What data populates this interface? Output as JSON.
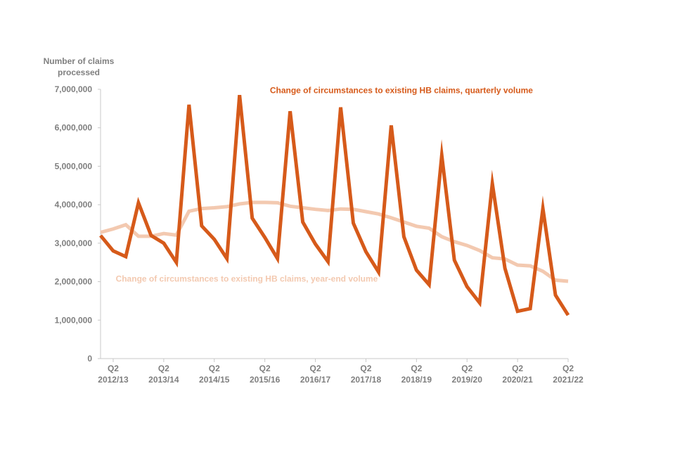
{
  "chart_data": {
    "type": "line",
    "title": "",
    "ylabel": [
      "Number of claims",
      "processed"
    ],
    "ylim": [
      0,
      7000000
    ],
    "yticks": [
      0,
      1000000,
      2000000,
      3000000,
      4000000,
      5000000,
      6000000,
      7000000
    ],
    "ytick_labels": [
      "0",
      "1,000,000",
      "2,000,000",
      "3,000,000",
      "4,000,000",
      "5,000,000",
      "6,000,000",
      "7,000,000"
    ],
    "x_count": 38,
    "xticks": [
      {
        "index": 1,
        "q": "Q2",
        "year": "2012/13"
      },
      {
        "index": 5,
        "q": "Q2",
        "year": "2013/14"
      },
      {
        "index": 9,
        "q": "Q2",
        "year": "2014/15"
      },
      {
        "index": 13,
        "q": "Q2",
        "year": "2015/16"
      },
      {
        "index": 17,
        "q": "Q2",
        "year": "2016/17"
      },
      {
        "index": 21,
        "q": "Q2",
        "year": "2017/18"
      },
      {
        "index": 25,
        "q": "Q2",
        "year": "2018/19"
      },
      {
        "index": 29,
        "q": "Q2",
        "year": "2019/20"
      },
      {
        "index": 33,
        "q": "Q2",
        "year": "2020/21"
      },
      {
        "index": 37,
        "q": "Q2",
        "year": "2021/22"
      }
    ],
    "series": [
      {
        "name": "Change of circumstances to existing HB claims, quarterly volume",
        "color": "#d65a1a",
        "label_anchor": {
          "index": 13.4,
          "value": 6900000
        },
        "values": [
          3200000,
          2800000,
          2650000,
          4050000,
          3200000,
          3000000,
          2500000,
          6600000,
          3450000,
          3100000,
          2600000,
          6850000,
          3650000,
          3150000,
          2600000,
          6430000,
          3550000,
          2980000,
          2520000,
          6530000,
          3520000,
          2780000,
          2250000,
          6060000,
          3170000,
          2300000,
          1920000,
          5280000,
          2560000,
          1870000,
          1450000,
          4550000,
          2350000,
          1230000,
          1300000,
          3900000,
          1650000,
          1130000
        ]
      },
      {
        "name": "Change of circumstances to existing HB claims, year-end volume",
        "color": "#f3c9b0",
        "label_anchor": {
          "index": 1.2,
          "value": 2000000
        },
        "values": [
          3280000,
          3370000,
          3480000,
          3180000,
          3180000,
          3250000,
          3210000,
          3830000,
          3900000,
          3920000,
          3950000,
          4020000,
          4060000,
          4060000,
          4050000,
          3960000,
          3920000,
          3880000,
          3850000,
          3890000,
          3880000,
          3820000,
          3760000,
          3660000,
          3550000,
          3440000,
          3390000,
          3170000,
          3040000,
          2940000,
          2810000,
          2620000,
          2590000,
          2430000,
          2410000,
          2270000,
          2040000,
          2010000
        ]
      }
    ]
  }
}
